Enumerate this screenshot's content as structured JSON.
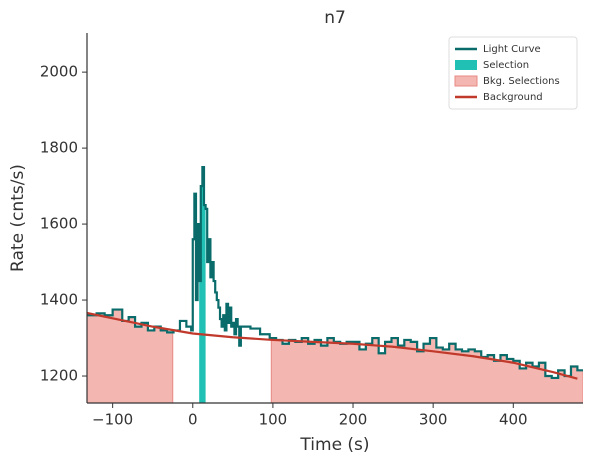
{
  "chart_data": {
    "type": "line",
    "title": "n7",
    "x_label": "Time (s)",
    "y_label": "Rate (cnts/s)",
    "xlim": [
      -132,
      487
    ],
    "ylim": [
      1129,
      2103
    ],
    "xticks": [
      {
        "value": -100,
        "label": "−100"
      },
      0,
      100,
      200,
      300,
      400
    ],
    "yticks": [
      1200,
      1400,
      1600,
      1800,
      2000
    ],
    "legend": "upper right",
    "series": [
      {
        "name": "Light Curve",
        "color": "#0a6b6b",
        "step": true,
        "x": [
          -132,
          -120,
          -110,
          -100,
          -88,
          -80,
          -72,
          -64,
          -56,
          -48,
          -40,
          -32,
          -24,
          -16,
          -8,
          -2,
          0,
          2,
          4,
          6,
          8,
          10,
          12,
          14,
          16,
          18,
          20,
          22,
          24,
          26,
          28,
          30,
          32,
          34,
          36,
          38,
          40,
          42,
          44,
          46,
          48,
          50,
          52,
          54,
          56,
          58,
          60,
          72,
          84,
          96,
          104,
          112,
          120,
          128,
          136,
          144,
          152,
          160,
          168,
          176,
          184,
          192,
          200,
          208,
          216,
          224,
          232,
          240,
          248,
          256,
          264,
          272,
          280,
          288,
          296,
          304,
          312,
          320,
          328,
          336,
          344,
          352,
          360,
          368,
          376,
          384,
          392,
          400,
          408,
          416,
          424,
          432,
          440,
          448,
          456,
          464,
          472,
          480
        ],
        "values": [
          1360,
          1365,
          1360,
          1375,
          1345,
          1355,
          1330,
          1340,
          1320,
          1330,
          1320,
          1315,
          1320,
          1345,
          1330,
          1320,
          1560,
          1680,
          1400,
          1600,
          1450,
          1700,
          1750,
          1650,
          1640,
          1500,
          1560,
          1460,
          1500,
          1450,
          1420,
          1400,
          1380,
          1350,
          1330,
          1360,
          1320,
          1390,
          1340,
          1380,
          1330,
          1340,
          1310,
          1350,
          1330,
          1280,
          1330,
          1325,
          1310,
          1300,
          1295,
          1285,
          1295,
          1290,
          1300,
          1285,
          1295,
          1280,
          1300,
          1290,
          1285,
          1290,
          1290,
          1270,
          1285,
          1300,
          1260,
          1290,
          1300,
          1280,
          1295,
          1290,
          1265,
          1285,
          1300,
          1275,
          1270,
          1285,
          1270,
          1265,
          1270,
          1265,
          1250,
          1255,
          1240,
          1255,
          1245,
          1240,
          1220,
          1235,
          1225,
          1235,
          1200,
          1195,
          1215,
          1200,
          1225,
          1215
        ]
      },
      {
        "name": "Background",
        "color": "#c0392b",
        "x": [
          -132,
          -100,
          -50,
          0,
          50,
          100,
          150,
          200,
          250,
          300,
          350,
          400,
          450,
          480
        ],
        "values": [
          1366,
          1352,
          1330,
          1312,
          1302,
          1295,
          1290,
          1285,
          1277,
          1265,
          1252,
          1235,
          1210,
          1193
        ]
      }
    ],
    "spans": [
      {
        "name": "Selection",
        "color": "#20c0b4",
        "ranges": [
          [
            8,
            16
          ]
        ]
      },
      {
        "name": "Bkg. Selections",
        "color": "#f4b6b0",
        "ranges": [
          [
            -132,
            -25
          ],
          [
            98,
            487
          ]
        ]
      }
    ]
  }
}
